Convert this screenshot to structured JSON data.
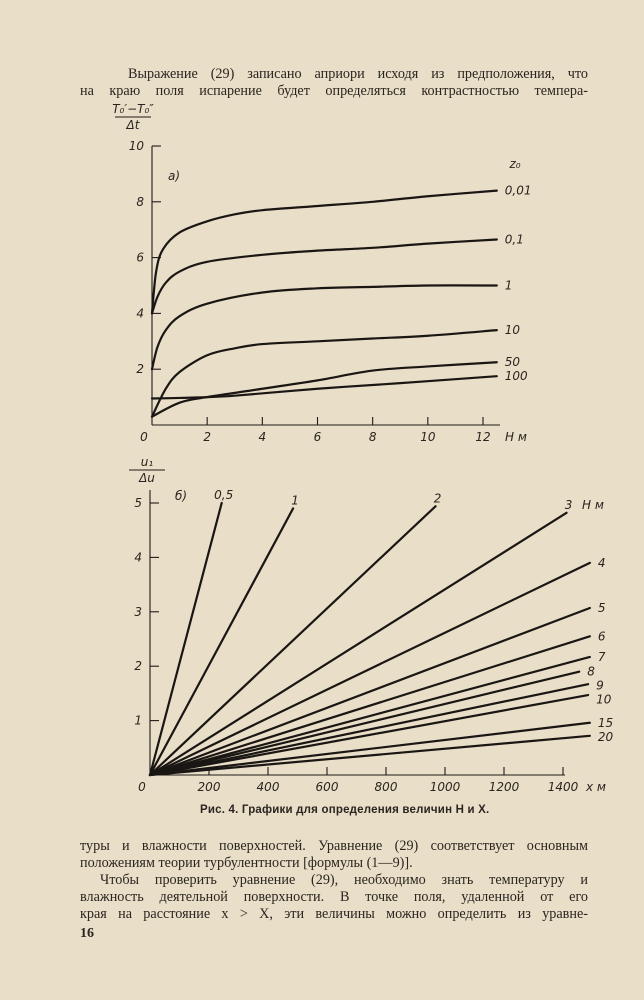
{
  "text_top": [
    "Выражение (29) записано априори исходя из предположения, что",
    "на краю поля испарение будет определяться контрастностью темпера-"
  ],
  "caption": "Рис. 4. Графики для определения величин H и X.",
  "text_bottom": [
    "туры и влажности поверхностей. Уравнение (29) соответствует основным",
    "положениям теории турбулентности [формулы (1—9)].",
    "Чтобы проверить уравнение (29), необходимо знать температуру и",
    "влажность деятельной поверхности. В точке поля, удаленной от его",
    "края на расстояние x > X, эти величины можно определить из уравне-"
  ],
  "page_number": "16",
  "chart_data": [
    {
      "type": "line",
      "panel_label": "а)",
      "ylabel_num": "T₀′−T₀″",
      "ylabel_den": "Δt",
      "xlabel": "H м",
      "legend_title": "z₀",
      "xlim": [
        0,
        12.5
      ],
      "ylim": [
        0,
        10
      ],
      "xticks": [
        "0",
        "2",
        "4",
        "6",
        "8",
        "10",
        "12"
      ],
      "yticks": [
        "2",
        "4",
        "6",
        "8",
        "10"
      ],
      "series": [
        {
          "name": "0,01",
          "x": [
            0,
            0.15,
            0.4,
            1,
            2,
            3,
            4,
            6,
            8,
            10,
            12.5
          ],
          "y": [
            4.0,
            5.5,
            6.3,
            6.9,
            7.3,
            7.55,
            7.7,
            7.85,
            8.0,
            8.2,
            8.4
          ]
        },
        {
          "name": "0,1",
          "x": [
            0,
            0.2,
            0.5,
            1,
            2,
            4,
            6,
            8,
            10,
            12.5
          ],
          "y": [
            4.0,
            4.6,
            5.1,
            5.5,
            5.85,
            6.1,
            6.25,
            6.35,
            6.5,
            6.65
          ]
        },
        {
          "name": "1",
          "x": [
            0,
            0.2,
            0.5,
            1,
            2,
            4,
            6,
            8,
            10,
            12.5
          ],
          "y": [
            2.0,
            2.8,
            3.4,
            3.9,
            4.35,
            4.75,
            4.9,
            4.95,
            5.0,
            5.0
          ]
        },
        {
          "name": "10",
          "x": [
            0,
            0.5,
            1,
            2,
            3,
            4,
            6,
            8,
            10,
            12.5
          ],
          "y": [
            0.3,
            1.3,
            1.9,
            2.5,
            2.75,
            2.9,
            3.0,
            3.1,
            3.2,
            3.4
          ]
        },
        {
          "name": "50",
          "x": [
            0,
            1,
            2,
            4,
            6,
            8,
            10,
            12.5
          ],
          "y": [
            0.3,
            0.8,
            1.0,
            1.3,
            1.6,
            1.95,
            2.1,
            2.25
          ]
        },
        {
          "name": "100",
          "x": [
            0,
            1,
            2,
            3,
            6,
            9,
            12.5
          ],
          "y": [
            0.95,
            0.97,
            1.0,
            1.05,
            1.3,
            1.5,
            1.75
          ]
        }
      ]
    },
    {
      "type": "line",
      "panel_label": "б)",
      "ylabel_num": "u₁",
      "ylabel_den": "Δu",
      "xlabel": "x м",
      "legend_title": "H м",
      "xlim": [
        0,
        1500
      ],
      "ylim": [
        0,
        5
      ],
      "xticks": [
        "0",
        "200",
        "400",
        "600",
        "800",
        "1000",
        "1200",
        "1400"
      ],
      "yticks": [
        "1",
        "2",
        "3",
        "4",
        "5"
      ],
      "series": [
        {
          "name": "0,5",
          "x": [
            0,
            243
          ],
          "y": [
            0,
            5.0
          ]
        },
        {
          "name": "1",
          "x": [
            0,
            485
          ],
          "y": [
            0,
            4.9
          ]
        },
        {
          "name": "2",
          "x": [
            0,
            968
          ],
          "y": [
            0,
            4.94
          ]
        },
        {
          "name": "3",
          "x": [
            0,
            1412
          ],
          "y": [
            0,
            4.82
          ]
        },
        {
          "name": "4",
          "x": [
            0,
            1491
          ],
          "y": [
            0,
            3.9
          ]
        },
        {
          "name": "5",
          "x": [
            0,
            1491
          ],
          "y": [
            0,
            3.07
          ]
        },
        {
          "name": "6",
          "x": [
            0,
            1491
          ],
          "y": [
            0,
            2.55
          ]
        },
        {
          "name": "7",
          "x": [
            0,
            1491
          ],
          "y": [
            0,
            2.17
          ]
        },
        {
          "name": "8",
          "x": [
            0,
            1455
          ],
          "y": [
            0,
            1.9
          ]
        },
        {
          "name": "9",
          "x": [
            0,
            1485
          ],
          "y": [
            0,
            1.67
          ]
        },
        {
          "name": "10",
          "x": [
            0,
            1485
          ],
          "y": [
            0,
            1.47
          ]
        },
        {
          "name": "15",
          "x": [
            0,
            1491
          ],
          "y": [
            0,
            0.96
          ]
        },
        {
          "name": "20",
          "x": [
            0,
            1491
          ],
          "y": [
            0,
            0.72
          ]
        }
      ]
    }
  ]
}
